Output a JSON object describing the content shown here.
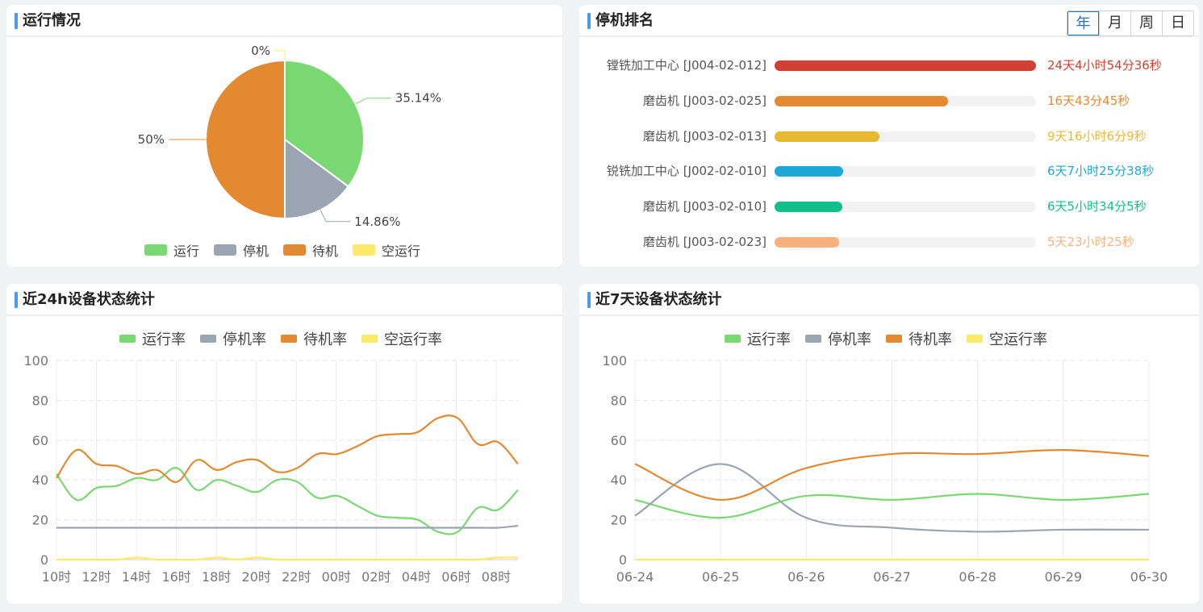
{
  "colors": {
    "run": "#79d872",
    "stop": "#9aa5b1",
    "wait": "#e38a31",
    "idle": "#fce96b",
    "accent": "#4a9bf0"
  },
  "panel_status": {
    "title": "运行情况",
    "legend": [
      "运行",
      "停机",
      "待机",
      "空运行"
    ],
    "chart_data": {
      "type": "pie",
      "categories": [
        "运行",
        "停机",
        "待机",
        "空运行"
      ],
      "values": [
        35.14,
        14.86,
        50,
        0
      ],
      "labels": [
        "35.14%",
        "14.86%",
        "50%",
        "0%"
      ]
    }
  },
  "panel_rank": {
    "title": "停机排名",
    "periods": [
      "年",
      "月",
      "周",
      "日"
    ],
    "selected_period": "年",
    "items": [
      {
        "label": "镗铣加工中心 [J004-02-012]",
        "value": "24天4小时54分36秒",
        "ratio": 1.0,
        "color": "#d04133"
      },
      {
        "label": "磨齿机 [J003-02-025]",
        "value": "16天43分45秒",
        "ratio": 0.665,
        "color": "#e38a31"
      },
      {
        "label": "磨齿机 [J003-02-013]",
        "value": "9天16小时6分9秒",
        "ratio": 0.4,
        "color": "#e8b930"
      },
      {
        "label": "锐铣加工中心 [J002-02-010]",
        "value": "6天7小时25分38秒",
        "ratio": 0.262,
        "color": "#1ea7d9"
      },
      {
        "label": "磨齿机 [J003-02-010]",
        "value": "6天5小时34分5秒",
        "ratio": 0.258,
        "color": "#10bf8a"
      },
      {
        "label": "磨齿机 [J003-02-023]",
        "value": "5天23小时25秒",
        "ratio": 0.248,
        "color": "#f7b17e"
      }
    ]
  },
  "panel_24h": {
    "title": "近24h设备状态统计",
    "legend": [
      "运行率",
      "停机率",
      "待机率",
      "空运行率"
    ],
    "chart_data": {
      "type": "line",
      "ylim": [
        0,
        100
      ],
      "yticks": [
        0,
        20,
        40,
        60,
        80,
        100
      ],
      "x_labels": [
        "10时",
        "12时",
        "14时",
        "16时",
        "18时",
        "20时",
        "22时",
        "00时",
        "02时",
        "04时",
        "06时",
        "08时"
      ],
      "x": [
        "10时",
        "11时",
        "12时",
        "13时",
        "14时",
        "15时",
        "16时",
        "17时",
        "18时",
        "19时",
        "20时",
        "21时",
        "22时",
        "23时",
        "00时",
        "01时",
        "02时",
        "03时",
        "04时",
        "05时",
        "06时",
        "07时",
        "08时",
        "09时"
      ],
      "series": [
        {
          "name": "运行率",
          "values": [
            43,
            30,
            36,
            37,
            41,
            40,
            46,
            35,
            40,
            37,
            34,
            40,
            39,
            31,
            32,
            27,
            22,
            21,
            20,
            14,
            14,
            26,
            25,
            35
          ]
        },
        {
          "name": "停机率",
          "values": [
            16,
            16,
            16,
            16,
            16,
            16,
            16,
            16,
            16,
            16,
            16,
            16,
            16,
            16,
            16,
            16,
            16,
            16,
            16,
            16,
            16,
            16,
            16,
            17
          ]
        },
        {
          "name": "待机率",
          "values": [
            41,
            55,
            48,
            47,
            43,
            45,
            39,
            50,
            45,
            49,
            50,
            44,
            46,
            53,
            53,
            57,
            62,
            63,
            64,
            71,
            71,
            58,
            59,
            48
          ]
        },
        {
          "name": "空运行率",
          "values": [
            0,
            0,
            0,
            0,
            1,
            0,
            0,
            0,
            1,
            0,
            1,
            0,
            0,
            0,
            0,
            0,
            0,
            0,
            0,
            0,
            0,
            0,
            1,
            1
          ]
        }
      ]
    }
  },
  "panel_7d": {
    "title": "近7天设备状态统计",
    "legend": [
      "运行率",
      "停机率",
      "待机率",
      "空运行率"
    ],
    "chart_data": {
      "type": "line",
      "ylim": [
        0,
        100
      ],
      "yticks": [
        0,
        20,
        40,
        60,
        80,
        100
      ],
      "x": [
        "06-24",
        "06-25",
        "06-26",
        "06-27",
        "06-28",
        "06-29",
        "06-30"
      ],
      "series": [
        {
          "name": "运行率",
          "values": [
            30,
            21,
            32,
            30,
            33,
            30,
            33
          ]
        },
        {
          "name": "停机率",
          "values": [
            22,
            48,
            21,
            16,
            14,
            15,
            15
          ]
        },
        {
          "name": "待机率",
          "values": [
            48,
            30,
            46,
            53,
            53,
            55,
            52
          ]
        },
        {
          "name": "空运行率",
          "values": [
            0,
            0,
            0,
            0,
            0,
            0,
            0
          ]
        }
      ]
    }
  }
}
